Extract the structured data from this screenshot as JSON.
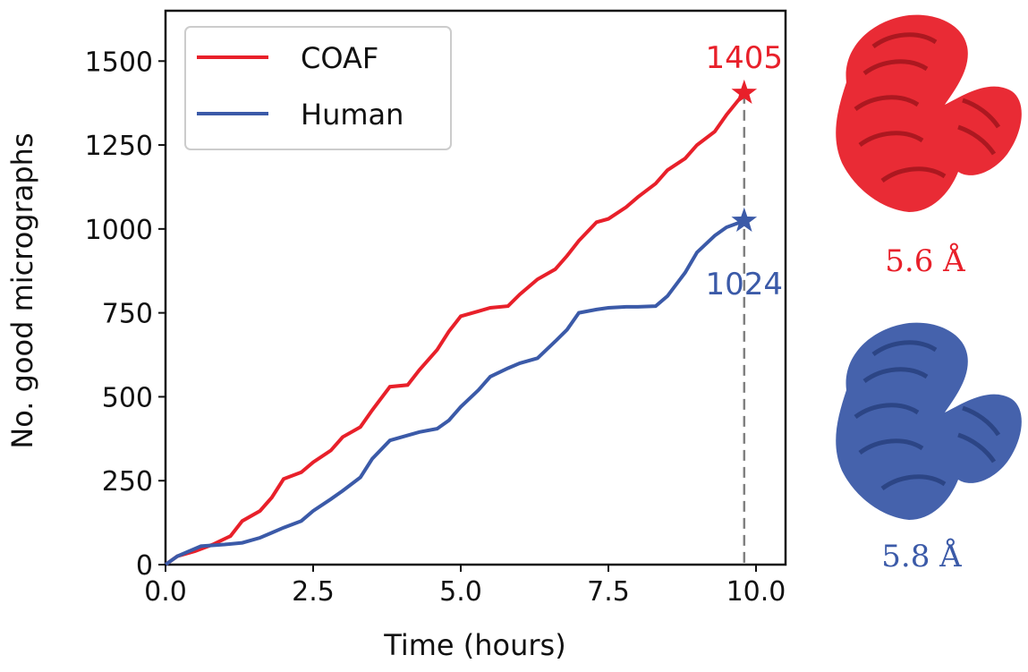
{
  "colors": {
    "coaf": "#e8202a",
    "human": "#3b5aa8",
    "axis": "#111111",
    "vline": "#808080"
  },
  "chart_data": {
    "type": "line",
    "xlabel": "Time (hours)",
    "ylabel": "No. good micrographs",
    "xlim": [
      0,
      10.5
    ],
    "ylim": [
      0,
      1650
    ],
    "xticks": [
      0.0,
      2.5,
      5.0,
      7.5,
      10.0
    ],
    "xtick_labels": [
      "0.0",
      "2.5",
      "5.0",
      "7.5",
      "10.0"
    ],
    "yticks": [
      0,
      250,
      500,
      750,
      1000,
      1250,
      1500
    ],
    "ytick_labels": [
      "0",
      "250",
      "500",
      "750",
      "1000",
      "1250",
      "1500"
    ],
    "legend_position": "top-left",
    "series": [
      {
        "name": "COAF",
        "color_key": "coaf",
        "x": [
          0,
          0.2,
          0.5,
          0.8,
          1.1,
          1.3,
          1.6,
          1.8,
          2.0,
          2.3,
          2.5,
          2.8,
          3.0,
          3.3,
          3.5,
          3.8,
          4.1,
          4.3,
          4.6,
          4.8,
          5.0,
          5.3,
          5.5,
          5.8,
          6.0,
          6.3,
          6.6,
          6.8,
          7.0,
          7.3,
          7.5,
          7.8,
          8.0,
          8.3,
          8.5,
          8.8,
          9.0,
          9.3,
          9.5,
          9.8
        ],
        "y": [
          0,
          25,
          40,
          60,
          85,
          130,
          160,
          200,
          255,
          275,
          305,
          340,
          380,
          410,
          460,
          530,
          535,
          580,
          640,
          695,
          740,
          755,
          765,
          770,
          805,
          850,
          880,
          920,
          965,
          1020,
          1030,
          1065,
          1095,
          1135,
          1175,
          1210,
          1250,
          1290,
          1340,
          1405
        ]
      },
      {
        "name": "Human",
        "color_key": "human",
        "x": [
          0,
          0.2,
          0.4,
          0.6,
          1.0,
          1.3,
          1.6,
          1.8,
          2.0,
          2.3,
          2.5,
          2.8,
          3.0,
          3.3,
          3.5,
          3.8,
          4.1,
          4.3,
          4.6,
          4.8,
          5.0,
          5.3,
          5.5,
          5.8,
          6.0,
          6.3,
          6.6,
          6.8,
          7.0,
          7.3,
          7.5,
          7.8,
          8.0,
          8.3,
          8.5,
          8.8,
          9.0,
          9.3,
          9.5,
          9.8
        ],
        "y": [
          0,
          25,
          40,
          55,
          60,
          65,
          80,
          95,
          110,
          130,
          160,
          195,
          220,
          260,
          315,
          370,
          385,
          395,
          405,
          430,
          470,
          520,
          560,
          585,
          600,
          615,
          665,
          700,
          750,
          760,
          765,
          768,
          768,
          770,
          800,
          870,
          930,
          980,
          1005,
          1024
        ]
      }
    ],
    "end_markers": [
      {
        "series": "COAF",
        "x": 9.8,
        "y": 1405,
        "label": "1405",
        "color_key": "coaf"
      },
      {
        "series": "Human",
        "x": 9.8,
        "y": 1024,
        "label": "1024",
        "color_key": "human"
      }
    ],
    "vertical_line_x": 9.8
  },
  "side_panels": [
    {
      "name": "COAF map",
      "resolution": "5.6 Å",
      "color_key": "coaf"
    },
    {
      "name": "Human map",
      "resolution": "5.8 Å",
      "color_key": "human"
    }
  ]
}
